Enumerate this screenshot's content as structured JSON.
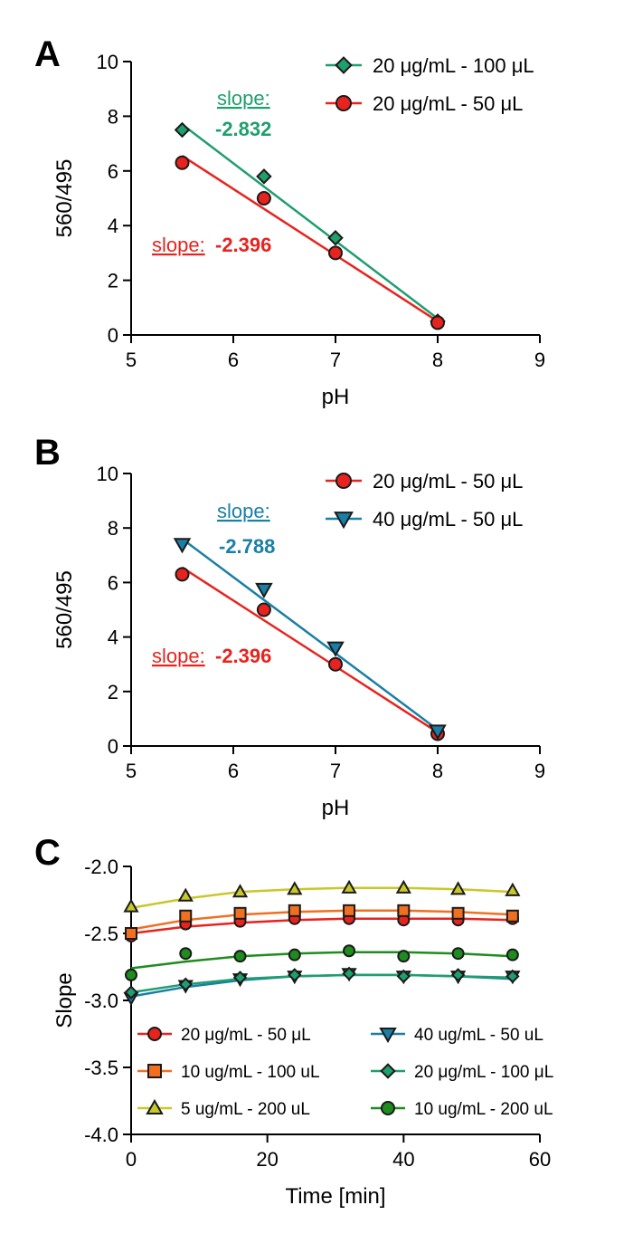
{
  "chart_data": [
    {
      "panel": "A",
      "type": "scatter",
      "xlabel": "pH",
      "ylabel": "560/495",
      "xlim": [
        5,
        9
      ],
      "ylim": [
        0,
        10
      ],
      "xticks": [
        "5",
        "6",
        "7",
        "8",
        "9"
      ],
      "yticks": [
        "0",
        "2",
        "4",
        "6",
        "8",
        "10"
      ],
      "legend_position": "top-right",
      "series": [
        {
          "name": "20 μg/mL - 100 μL",
          "color": "#1f9e6e",
          "marker": "diamond",
          "x": [
            5.5,
            6.3,
            7.0,
            8.0
          ],
          "y": [
            7.5,
            5.8,
            3.55,
            0.5
          ],
          "fit": [
            [
              5.5,
              7.7
            ],
            [
              8.0,
              0.6
            ]
          ]
        },
        {
          "name": "20 μg/mL - 50 μL",
          "color": "#e8231e",
          "marker": "circle",
          "x": [
            5.5,
            6.3,
            7.0,
            8.0
          ],
          "y": [
            6.3,
            5.0,
            3.0,
            0.45
          ],
          "fit": [
            [
              5.5,
              6.55
            ],
            [
              8.0,
              0.5
            ]
          ]
        }
      ],
      "annotations": [
        {
          "word": "slope:",
          "value": "-2.832",
          "color": "#1f9e6e"
        },
        {
          "word": "slope:",
          "value": "-2.396",
          "color": "#e8231e"
        }
      ]
    },
    {
      "panel": "B",
      "type": "scatter",
      "xlabel": "pH",
      "ylabel": "560/495",
      "xlim": [
        5,
        9
      ],
      "ylim": [
        0,
        10
      ],
      "xticks": [
        "5",
        "6",
        "7",
        "8",
        "9"
      ],
      "yticks": [
        "0",
        "2",
        "4",
        "6",
        "8",
        "10"
      ],
      "legend_position": "top-right",
      "series": [
        {
          "name": "20 μg/mL - 50 μL",
          "color": "#e8231e",
          "marker": "circle",
          "x": [
            5.5,
            6.3,
            7.0,
            8.0
          ],
          "y": [
            6.3,
            5.0,
            3.0,
            0.45
          ],
          "fit": [
            [
              5.5,
              6.55
            ],
            [
              8.0,
              0.5
            ]
          ]
        },
        {
          "name": "40 μg/mL - 50 μL",
          "color": "#1a7fa6",
          "marker": "triangle-down",
          "x": [
            5.5,
            6.3,
            7.0,
            8.0
          ],
          "y": [
            7.4,
            5.75,
            3.6,
            0.55
          ],
          "fit": [
            [
              5.5,
              7.6
            ],
            [
              8.0,
              0.6
            ]
          ]
        }
      ],
      "annotations": [
        {
          "word": "slope:",
          "value": "-2.788",
          "color": "#1a7fa6"
        },
        {
          "word": "slope:",
          "value": "-2.396",
          "color": "#e8231e"
        }
      ]
    },
    {
      "panel": "C",
      "type": "scatter",
      "xlabel": "Time [min]",
      "ylabel": "Slope",
      "xlim": [
        0,
        60
      ],
      "ylim": [
        -4.0,
        -2.0
      ],
      "xticks": [
        "0",
        "20",
        "40",
        "60"
      ],
      "yticks": [
        "-2.0",
        "-2.5",
        "-3.0",
        "-3.5",
        "-4.0"
      ],
      "legend_position": "bottom",
      "x": [
        0,
        8,
        16,
        24,
        32,
        40,
        48,
        56
      ],
      "series": [
        {
          "name": "20 μg/mL - 50 μL",
          "color": "#e8231e",
          "marker": "circle",
          "values": [
            -2.52,
            -2.43,
            -2.41,
            -2.39,
            -2.39,
            -2.4,
            -2.4,
            -2.39
          ],
          "fit": [
            -2.5,
            -2.45,
            -2.42,
            -2.4,
            -2.39,
            -2.39,
            -2.39,
            -2.4
          ]
        },
        {
          "name": "10 ug/mL - 100 uL",
          "color": "#f07020",
          "marker": "square",
          "values": [
            -2.5,
            -2.37,
            -2.35,
            -2.33,
            -2.33,
            -2.33,
            -2.35,
            -2.37
          ],
          "fit": [
            -2.47,
            -2.4,
            -2.36,
            -2.34,
            -2.33,
            -2.33,
            -2.34,
            -2.36
          ]
        },
        {
          "name": "5 ug/mL - 200 uL",
          "color": "#c8c82a",
          "marker": "triangle-up",
          "values": [
            -2.3,
            -2.22,
            -2.19,
            -2.17,
            -2.16,
            -2.16,
            -2.17,
            -2.18
          ],
          "fit": [
            -2.31,
            -2.24,
            -2.19,
            -2.17,
            -2.16,
            -2.16,
            -2.17,
            -2.19
          ]
        },
        {
          "name": "40 ug/mL - 50 uL",
          "color": "#1a7fa6",
          "marker": "triangle-down",
          "values": [
            -2.98,
            -2.89,
            -2.84,
            -2.82,
            -2.8,
            -2.82,
            -2.82,
            -2.82
          ],
          "fit": [
            -2.97,
            -2.9,
            -2.85,
            -2.82,
            -2.81,
            -2.81,
            -2.82,
            -2.84
          ]
        },
        {
          "name": "20 μg/mL - 100 μL",
          "color": "#1f9e6e",
          "marker": "diamond",
          "values": [
            -2.94,
            -2.88,
            -2.83,
            -2.81,
            -2.8,
            -2.82,
            -2.81,
            -2.82
          ],
          "fit": [
            -2.94,
            -2.88,
            -2.84,
            -2.82,
            -2.81,
            -2.81,
            -2.82,
            -2.83
          ]
        },
        {
          "name": "10 ug/mL - 200 uL",
          "color": "#1e8c1e",
          "marker": "circle",
          "values": [
            -2.81,
            -2.65,
            -2.67,
            -2.66,
            -2.63,
            -2.67,
            -2.65,
            -2.66
          ],
          "fit": [
            -2.76,
            -2.71,
            -2.67,
            -2.65,
            -2.64,
            -2.64,
            -2.65,
            -2.67
          ]
        }
      ]
    }
  ]
}
